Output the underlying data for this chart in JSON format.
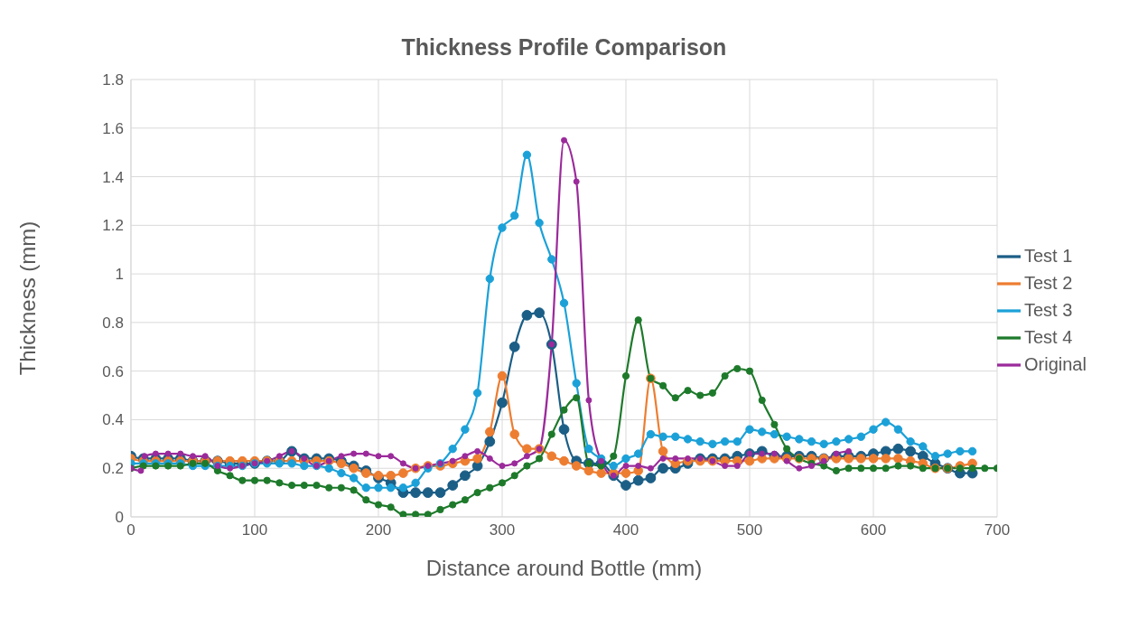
{
  "chart_data": {
    "type": "line",
    "title": "Thickness Profile Comparison",
    "xlabel": "Distance around Bottle (mm)",
    "ylabel": "Thickness (mm)",
    "xlim": [
      0,
      700
    ],
    "xticks": [
      0,
      100,
      200,
      300,
      400,
      500,
      600,
      700
    ],
    "ylim": [
      0,
      1.8
    ],
    "yticks": [
      0,
      0.2,
      0.4,
      0.6,
      0.8,
      1,
      1.2,
      1.4,
      1.6,
      1.8
    ],
    "grid": true,
    "legend": "right",
    "marker": "circle",
    "line_style": "solid",
    "series": [
      {
        "name": "Test 1",
        "color": "#1b5e86",
        "x": [
          0,
          10,
          20,
          30,
          40,
          50,
          60,
          70,
          80,
          90,
          100,
          110,
          120,
          130,
          140,
          150,
          160,
          170,
          180,
          190,
          200,
          210,
          220,
          230,
          240,
          250,
          260,
          270,
          280,
          290,
          300,
          310,
          320,
          330,
          340,
          350,
          360,
          370,
          380,
          390,
          400,
          410,
          420,
          430,
          440,
          450,
          460,
          470,
          480,
          490,
          500,
          510,
          520,
          530,
          540,
          550,
          560,
          570,
          580,
          590,
          600,
          610,
          620,
          630,
          640,
          650,
          660,
          670,
          680
        ],
        "values": [
          0.25,
          0.24,
          0.24,
          0.24,
          0.24,
          0.23,
          0.23,
          0.23,
          0.22,
          0.22,
          0.22,
          0.23,
          0.23,
          0.27,
          0.24,
          0.24,
          0.24,
          0.23,
          0.21,
          0.19,
          0.16,
          0.14,
          0.1,
          0.1,
          0.1,
          0.1,
          0.13,
          0.17,
          0.21,
          0.31,
          0.47,
          0.7,
          0.83,
          0.84,
          0.71,
          0.36,
          0.23,
          0.22,
          0.22,
          0.17,
          0.13,
          0.15,
          0.16,
          0.2,
          0.2,
          0.22,
          0.24,
          0.24,
          0.24,
          0.25,
          0.26,
          0.27,
          0.25,
          0.25,
          0.25,
          0.25,
          0.24,
          0.25,
          0.25,
          0.25,
          0.26,
          0.27,
          0.28,
          0.27,
          0.25,
          0.22,
          0.2,
          0.18,
          0.18
        ]
      },
      {
        "name": "Test 2",
        "color": "#ed7d31",
        "x": [
          0,
          10,
          20,
          30,
          40,
          50,
          60,
          70,
          80,
          90,
          100,
          110,
          120,
          130,
          140,
          150,
          160,
          170,
          180,
          190,
          200,
          210,
          220,
          230,
          240,
          250,
          260,
          270,
          280,
          290,
          300,
          310,
          320,
          330,
          340,
          350,
          360,
          370,
          380,
          390,
          400,
          410,
          420,
          430,
          440,
          450,
          460,
          470,
          480,
          490,
          500,
          510,
          520,
          530,
          540,
          550,
          560,
          570,
          580,
          590,
          600,
          610,
          620,
          630,
          640,
          650,
          660,
          670,
          680
        ],
        "values": [
          0.24,
          0.23,
          0.23,
          0.23,
          0.23,
          0.23,
          0.23,
          0.23,
          0.23,
          0.23,
          0.23,
          0.23,
          0.23,
          0.23,
          0.23,
          0.23,
          0.23,
          0.22,
          0.2,
          0.18,
          0.17,
          0.17,
          0.18,
          0.2,
          0.21,
          0.21,
          0.22,
          0.23,
          0.24,
          0.35,
          0.58,
          0.34,
          0.28,
          0.28,
          0.25,
          0.23,
          0.21,
          0.19,
          0.18,
          0.18,
          0.18,
          0.19,
          0.57,
          0.27,
          0.22,
          0.23,
          0.23,
          0.23,
          0.23,
          0.23,
          0.23,
          0.24,
          0.24,
          0.24,
          0.24,
          0.24,
          0.24,
          0.24,
          0.24,
          0.24,
          0.24,
          0.24,
          0.24,
          0.23,
          0.22,
          0.2,
          0.2,
          0.21,
          0.22
        ]
      },
      {
        "name": "Test 3",
        "color": "#1ba1d8",
        "x": [
          0,
          10,
          20,
          30,
          40,
          50,
          60,
          70,
          80,
          90,
          100,
          110,
          120,
          130,
          140,
          150,
          160,
          170,
          180,
          190,
          200,
          210,
          220,
          230,
          240,
          250,
          260,
          270,
          280,
          290,
          300,
          310,
          320,
          330,
          340,
          350,
          360,
          370,
          380,
          390,
          400,
          410,
          420,
          430,
          440,
          450,
          460,
          470,
          480,
          490,
          500,
          510,
          520,
          530,
          540,
          550,
          560,
          570,
          580,
          590,
          600,
          610,
          620,
          630,
          640,
          650,
          660,
          670,
          680
        ],
        "values": [
          0.22,
          0.22,
          0.22,
          0.22,
          0.22,
          0.21,
          0.21,
          0.21,
          0.21,
          0.21,
          0.22,
          0.22,
          0.22,
          0.22,
          0.21,
          0.21,
          0.2,
          0.18,
          0.16,
          0.12,
          0.12,
          0.12,
          0.12,
          0.14,
          0.2,
          0.22,
          0.28,
          0.36,
          0.51,
          0.98,
          1.19,
          1.24,
          1.49,
          1.21,
          1.06,
          0.88,
          0.55,
          0.28,
          0.24,
          0.21,
          0.24,
          0.26,
          0.34,
          0.33,
          0.33,
          0.32,
          0.31,
          0.3,
          0.31,
          0.31,
          0.36,
          0.35,
          0.34,
          0.33,
          0.32,
          0.31,
          0.3,
          0.31,
          0.32,
          0.33,
          0.36,
          0.39,
          0.36,
          0.31,
          0.29,
          0.25,
          0.26,
          0.27,
          0.27
        ]
      },
      {
        "name": "Test 4",
        "color": "#1e7a2b",
        "x": [
          0,
          10,
          20,
          30,
          40,
          50,
          60,
          70,
          80,
          90,
          100,
          110,
          120,
          130,
          140,
          150,
          160,
          170,
          180,
          190,
          200,
          210,
          220,
          230,
          240,
          250,
          260,
          270,
          280,
          290,
          300,
          310,
          320,
          330,
          340,
          350,
          360,
          370,
          380,
          390,
          400,
          410,
          420,
          430,
          440,
          450,
          460,
          470,
          480,
          490,
          500,
          510,
          520,
          530,
          540,
          550,
          560,
          570,
          580,
          590,
          600,
          610,
          620,
          630,
          640,
          650,
          660,
          670,
          680,
          690,
          700
        ],
        "values": [
          0.2,
          0.21,
          0.21,
          0.21,
          0.21,
          0.22,
          0.22,
          0.19,
          0.17,
          0.15,
          0.15,
          0.15,
          0.14,
          0.13,
          0.13,
          0.13,
          0.12,
          0.12,
          0.11,
          0.07,
          0.05,
          0.04,
          0.01,
          0.01,
          0.01,
          0.03,
          0.05,
          0.07,
          0.1,
          0.12,
          0.14,
          0.17,
          0.21,
          0.24,
          0.34,
          0.44,
          0.49,
          0.22,
          0.21,
          0.25,
          0.58,
          0.81,
          0.57,
          0.54,
          0.49,
          0.52,
          0.5,
          0.51,
          0.58,
          0.61,
          0.6,
          0.48,
          0.38,
          0.28,
          0.24,
          0.22,
          0.21,
          0.19,
          0.2,
          0.2,
          0.2,
          0.2,
          0.21,
          0.21,
          0.2,
          0.2,
          0.2,
          0.2,
          0.2,
          0.2,
          0.2
        ]
      },
      {
        "name": "Original",
        "color": "#9b2a9b",
        "x": [
          0,
          8,
          11,
          20,
          30,
          40,
          50,
          60,
          70,
          80,
          90,
          100,
          110,
          120,
          130,
          140,
          150,
          160,
          170,
          180,
          190,
          200,
          210,
          220,
          230,
          240,
          250,
          260,
          270,
          280,
          290,
          300,
          310,
          320,
          330,
          340,
          350,
          360,
          370,
          380,
          390,
          400,
          410,
          420,
          430,
          440,
          450,
          460,
          470,
          480,
          490,
          500,
          510,
          520,
          530,
          540,
          550,
          560,
          570,
          580
        ],
        "values": [
          0.2,
          0.19,
          0.25,
          0.26,
          0.26,
          0.26,
          0.25,
          0.25,
          0.21,
          0.2,
          0.21,
          0.22,
          0.23,
          0.25,
          0.27,
          0.24,
          0.21,
          0.23,
          0.25,
          0.26,
          0.26,
          0.25,
          0.25,
          0.22,
          0.2,
          0.21,
          0.22,
          0.23,
          0.25,
          0.27,
          0.24,
          0.21,
          0.22,
          0.25,
          0.28,
          0.71,
          1.55,
          1.38,
          0.48,
          0.23,
          0.17,
          0.21,
          0.21,
          0.2,
          0.24,
          0.24,
          0.24,
          0.24,
          0.23,
          0.21,
          0.21,
          0.26,
          0.26,
          0.26,
          0.23,
          0.2,
          0.21,
          0.23,
          0.26,
          0.27
        ]
      }
    ]
  }
}
